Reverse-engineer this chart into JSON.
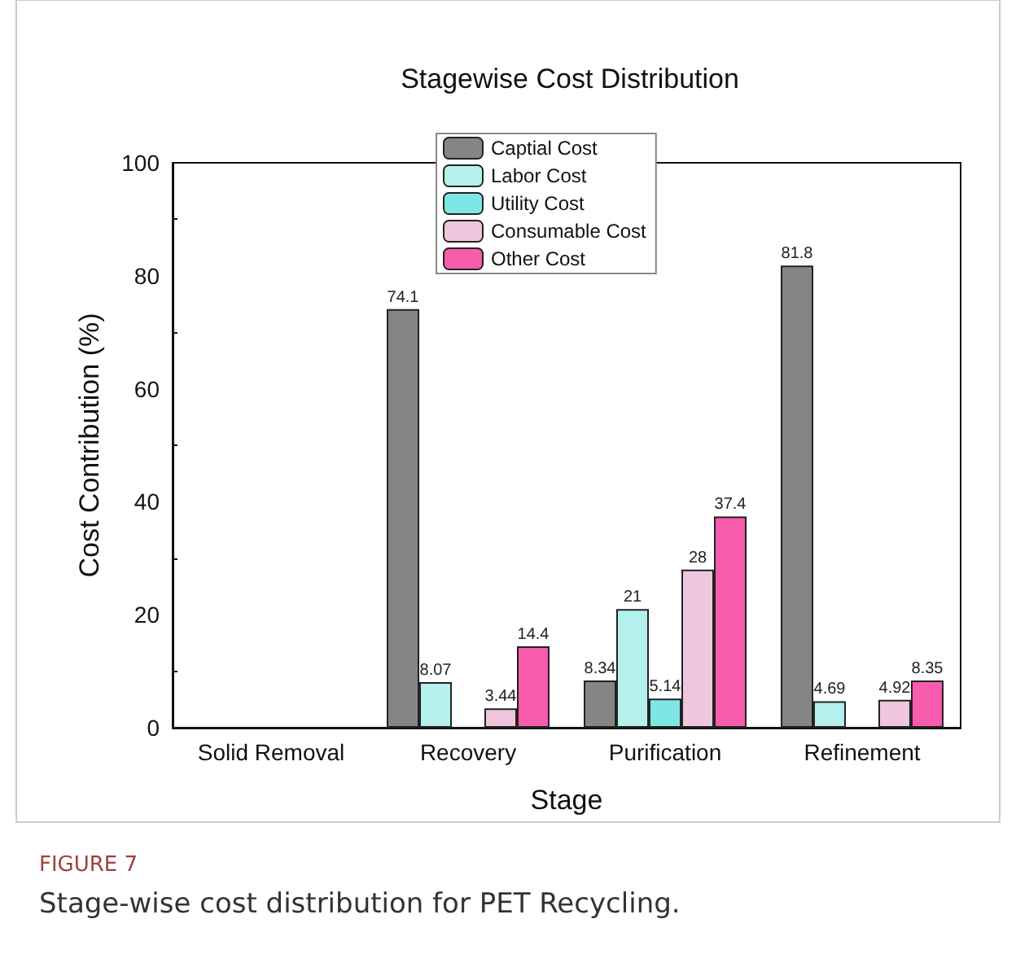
{
  "chart_data": {
    "type": "bar",
    "title": "Stagewise Cost Distribution",
    "xlabel": "Stage",
    "ylabel": "Cost Contribution (%)",
    "annotations": [
      "FIGURE 7",
      "Stage-wise cost distribution for PET Recycling."
    ],
    "categories": [
      "Solid Removal",
      "Recovery",
      "Purification",
      "Refinement"
    ],
    "series": [
      {
        "name": "Captial Cost",
        "color": "#858585",
        "values": [
          null,
          74.1,
          8.34,
          81.8
        ],
        "value_labels": [
          null,
          "74.1",
          "8.34",
          "81.8"
        ]
      },
      {
        "name": "Labor Cost",
        "color": "#b4f0ee",
        "values": [
          null,
          8.07,
          21,
          4.69
        ],
        "value_labels": [
          null,
          "8.07",
          "21",
          "4.69"
        ]
      },
      {
        "name": "Utility Cost",
        "color": "#7fe6e6",
        "values": [
          null,
          null,
          5.14,
          null
        ],
        "value_labels": [
          null,
          null,
          "5.14",
          null
        ]
      },
      {
        "name": "Consumable Cost",
        "color": "#eec6de",
        "values": [
          null,
          3.44,
          28,
          4.92
        ],
        "value_labels": [
          null,
          "3.44",
          "28",
          "4.92"
        ]
      },
      {
        "name": "Other Cost",
        "color": "#f75cad",
        "values": [
          null,
          14.4,
          37.4,
          8.35
        ],
        "value_labels": [
          null,
          "14.4",
          "37.4",
          "8.35"
        ]
      }
    ],
    "ylim": [
      0,
      100
    ],
    "yticks": [
      0,
      20,
      40,
      60,
      80,
      100
    ],
    "grid": false,
    "legend": "top"
  }
}
